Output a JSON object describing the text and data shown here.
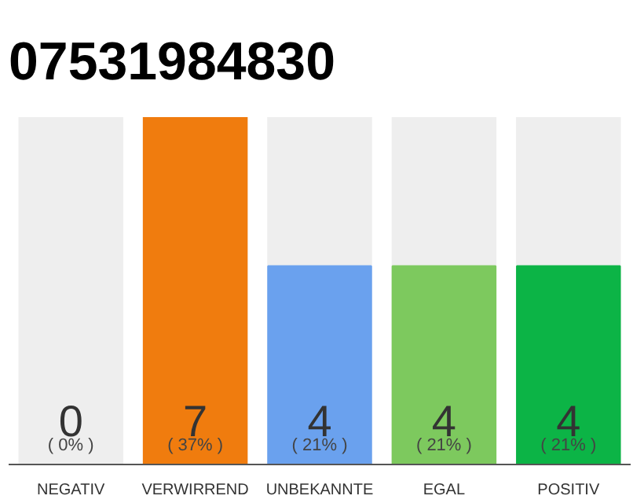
{
  "chart_data": {
    "type": "bar",
    "title": "07531984830",
    "categories": [
      "NEGATIV",
      "VERWIRREND",
      "UNBEKANNTE",
      "EGAL",
      "POSITIV"
    ],
    "values": [
      0,
      7,
      4,
      4,
      4
    ],
    "colors": [
      "#f0f0f0",
      "#f07c0e",
      "#6aa1ee",
      "#7dc95e",
      "#0cb446"
    ],
    "ylim": [
      0,
      7
    ],
    "tick_labels": "x",
    "grid": false,
    "data_labels": true,
    "annotations": [
      "( 0% )",
      "( 37% )",
      "( 21% )",
      "( 21% )",
      "( 21% )"
    ]
  }
}
